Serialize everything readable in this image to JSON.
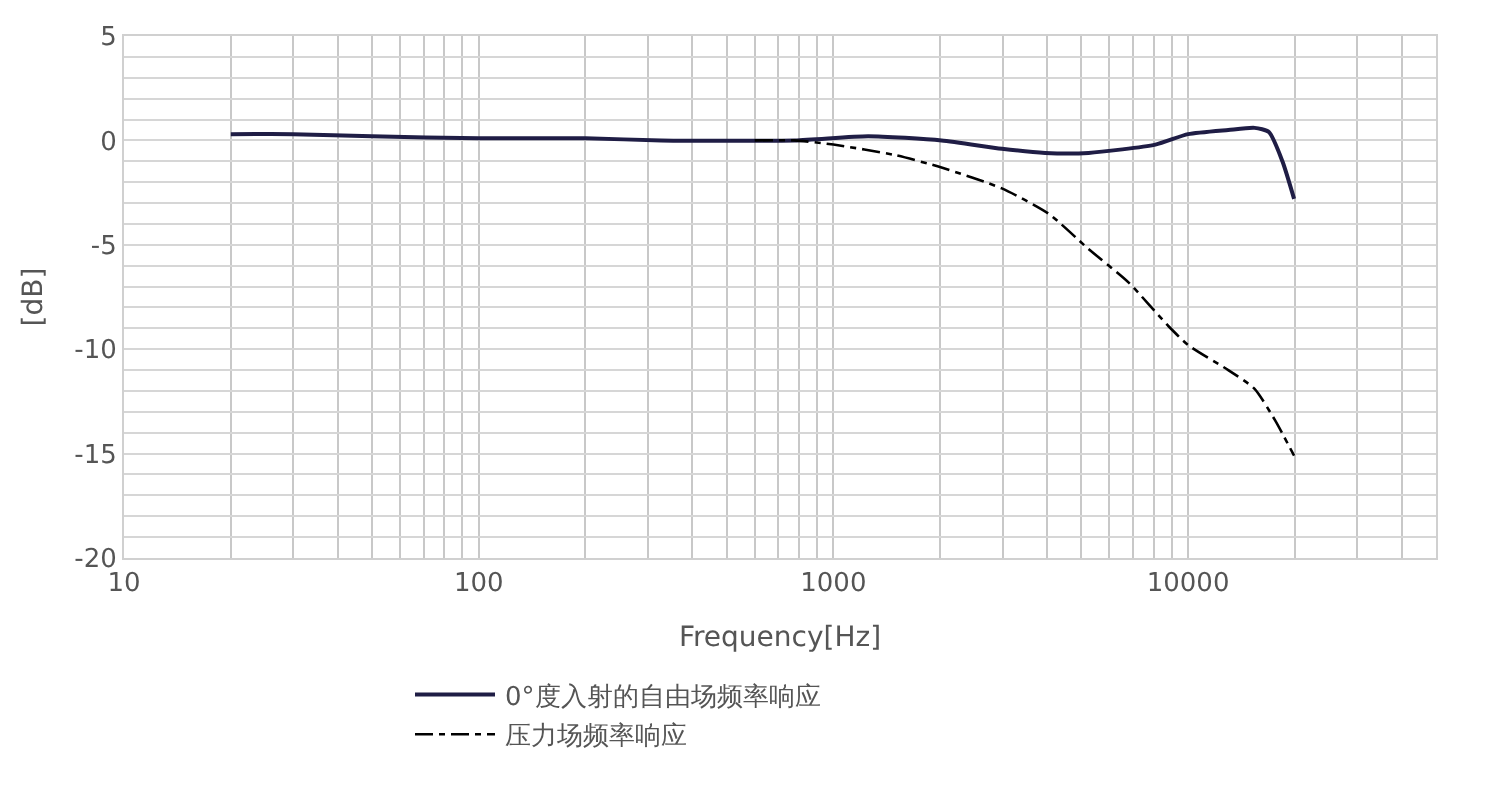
{
  "chart_data": {
    "type": "line",
    "xlabel": "Frequency[Hz]",
    "ylabel": "[dB]",
    "log": "x",
    "xlim": [
      10,
      50000
    ],
    "ylim": [
      -20,
      5
    ],
    "xticks": [
      10,
      {
        "value": 20,
        "label": null
      },
      {
        "value": 30,
        "label": null
      },
      {
        "value": 40,
        "label": null
      },
      {
        "value": 50,
        "label": null
      },
      {
        "value": 60,
        "label": null
      },
      {
        "value": 70,
        "label": null
      },
      {
        "value": 80,
        "label": null
      },
      {
        "value": 90,
        "label": null
      },
      100,
      {
        "value": 200,
        "label": null
      },
      {
        "value": 300,
        "label": null
      },
      {
        "value": 400,
        "label": null
      },
      {
        "value": 500,
        "label": null
      },
      {
        "value": 600,
        "label": null
      },
      {
        "value": 700,
        "label": null
      },
      {
        "value": 800,
        "label": null
      },
      {
        "value": 900,
        "label": null
      },
      1000,
      {
        "value": 2000,
        "label": null
      },
      {
        "value": 3000,
        "label": null
      },
      {
        "value": 4000,
        "label": null
      },
      {
        "value": 5000,
        "label": null
      },
      {
        "value": 6000,
        "label": null
      },
      {
        "value": 7000,
        "label": null
      },
      {
        "value": 8000,
        "label": null
      },
      {
        "value": 9000,
        "label": null
      },
      10000,
      {
        "value": 20000,
        "label": null
      },
      {
        "value": 30000,
        "label": null
      },
      {
        "value": 40000,
        "label": null
      }
    ],
    "yticks": [
      -20,
      {
        "value": -19,
        "label": null
      },
      {
        "value": -18,
        "label": null
      },
      {
        "value": -17,
        "label": null
      },
      {
        "value": -16,
        "label": null
      },
      -15,
      {
        "value": -14,
        "label": null
      },
      {
        "value": -13,
        "label": null
      },
      {
        "value": -12,
        "label": null
      },
      {
        "value": -11,
        "label": null
      },
      -10,
      {
        "value": -9,
        "label": null
      },
      {
        "value": -8,
        "label": null
      },
      {
        "value": -7,
        "label": null
      },
      {
        "value": -6,
        "label": null
      },
      -5,
      {
        "value": -4,
        "label": null
      },
      {
        "value": -3,
        "label": null
      },
      {
        "value": -2,
        "label": null
      },
      {
        "value": -1,
        "label": null
      },
      0,
      {
        "value": 1,
        "label": null
      },
      {
        "value": 2,
        "label": null
      },
      {
        "value": 3,
        "label": null
      },
      {
        "value": 4,
        "label": null
      },
      5
    ],
    "grid": true,
    "legend": "bottom",
    "marker": "none",
    "series": [
      {
        "name": "0°度入射的自由场频率响应",
        "color": "#1f1d45",
        "line_style": "solid",
        "x": [
          20,
          30,
          50,
          100,
          200,
          327,
          778,
          1253,
          2018,
          2985,
          3955,
          5240,
          8090,
          10000,
          12980,
          15400,
          16900,
          18450,
          19900
        ],
        "values": [
          0.3,
          0.3,
          0.2,
          0.1,
          0.1,
          0.0,
          0.0,
          0.2,
          0.0,
          -0.4,
          -0.6,
          -0.6,
          -0.2,
          0.3,
          0.5,
          0.6,
          0.4,
          -1.0,
          -2.8
        ]
      },
      {
        "name": "压力场频率响应",
        "color": "#000000",
        "line_style": "dashdot",
        "x": [
          600,
          778,
          1000,
          1490,
          2018,
          2985,
          4036,
          5240,
          6790,
          8810,
          10000,
          12980,
          15400,
          17580,
          19900
        ],
        "values": [
          0.0,
          0.0,
          -0.2,
          -0.7,
          -1.3,
          -2.3,
          -3.5,
          -5.2,
          -6.8,
          -8.9,
          -9.8,
          -11.0,
          -11.9,
          -13.4,
          -15.1
        ]
      }
    ]
  }
}
